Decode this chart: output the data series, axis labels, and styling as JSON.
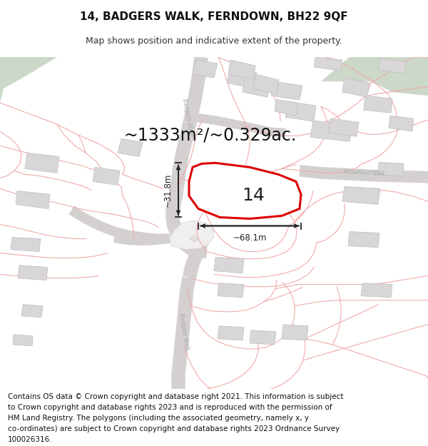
{
  "title_line1": "14, BADGERS WALK, FERNDOWN, BH22 9QF",
  "title_line2": "Map shows position and indicative extent of the property.",
  "area_text": "~1333m²/~0.329ac.",
  "number_text": "14",
  "dim_width": "~68.1m",
  "dim_height": "~31.8m",
  "map_bg": "#f7f6f6",
  "road_color": "#d4d0d0",
  "plot_outline_color": "#dd0000",
  "building_fill": "#d8d6d6",
  "building_edge": "#c0bebe",
  "green_fill": "#ccd8c8",
  "boundary_color": "#f0aaaa",
  "street_label_color": "#aaaaaa",
  "dim_color": "#222222",
  "footer_lines": [
    "Contains OS data © Crown copyright and database right 2021. This information is subject",
    "to Crown copyright and database rights 2023 and is reproduced with the permission of",
    "HM Land Registry. The polygons (including the associated geometry, namely x, y",
    "co-ordinates) are subject to Crown copyright and database rights 2023 Ordnance Survey",
    "100026316."
  ],
  "title_fontsize": 11,
  "subtitle_fontsize": 9,
  "footer_fontsize": 7.5,
  "area_fontsize": 17,
  "label_fontsize": 18
}
